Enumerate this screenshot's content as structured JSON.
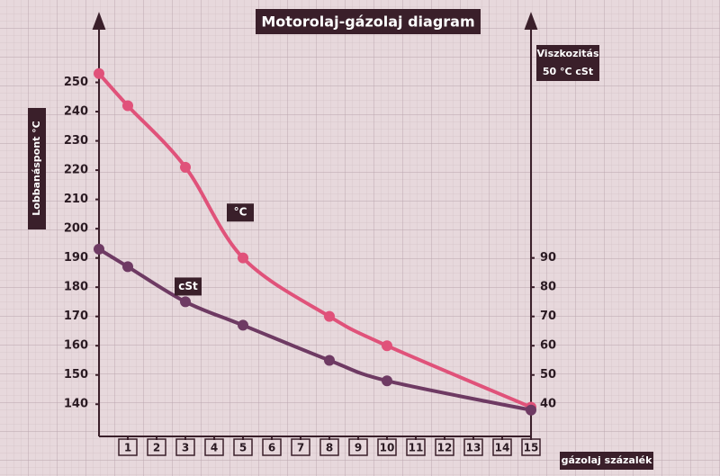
{
  "chart_data": {
    "type": "line",
    "title": "Motorolaj-gázolaj diagram",
    "xlabel": "gázolaj százalék",
    "ylabel": "Lobbanáspont   °C",
    "y2label": "Viszkozitás",
    "y2unit": "50 °C cSt",
    "x": [
      0,
      1,
      3,
      5,
      8,
      10,
      15
    ],
    "series": [
      {
        "name": "°C",
        "color": "#e0527a",
        "values": [
          253,
          242,
          221,
          190,
          170,
          160,
          139
        ]
      },
      {
        "name": "cSt",
        "color": "#6e3a63",
        "axis": "y2",
        "values": [
          93,
          87,
          75,
          67,
          55,
          48,
          38
        ]
      }
    ],
    "xlim": [
      0,
      15
    ],
    "xticks": [
      1,
      2,
      3,
      4,
      5,
      6,
      7,
      8,
      9,
      10,
      11,
      12,
      13,
      14,
      15
    ],
    "ylim": [
      129,
      272
    ],
    "yticks": [
      140,
      150,
      160,
      170,
      180,
      190,
      200,
      210,
      220,
      230,
      240,
      250
    ],
    "y2lim": [
      29,
      172
    ],
    "y2ticks": [
      40,
      50,
      60,
      70,
      80,
      90
    ]
  }
}
